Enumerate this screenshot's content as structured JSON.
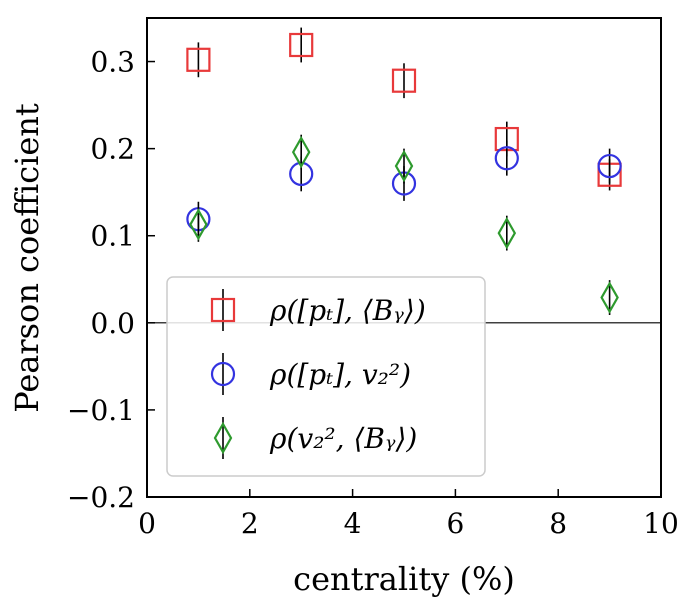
{
  "chart_data": {
    "type": "scatter",
    "title": "",
    "xlabel": "centrality (%)",
    "ylabel": "Pearson coefficient",
    "xlim": [
      0,
      10
    ],
    "ylim": [
      -0.2,
      0.35
    ],
    "xticks": [
      0,
      2,
      4,
      6,
      8,
      10
    ],
    "xtick_labels": [
      "0",
      "2",
      "4",
      "6",
      "8",
      "10"
    ],
    "yticks": [
      -0.2,
      -0.1,
      0.0,
      0.1,
      0.2,
      0.3
    ],
    "ytick_labels": [
      "−0.2",
      "−0.1",
      "0.0",
      "0.1",
      "0.2",
      "0.3"
    ],
    "reference_line_y": 0.0,
    "grid": false,
    "legend_position": "lower-left",
    "series": [
      {
        "name": "ρ([pₜ], ⟨Bᵧ⟩)",
        "marker": "square",
        "color": "#e8393a",
        "x": [
          1,
          3,
          5,
          7,
          9
        ],
        "y": [
          0.302,
          0.319,
          0.278,
          0.211,
          0.17
        ],
        "err": [
          0.02,
          0.02,
          0.02,
          0.02,
          0.018
        ]
      },
      {
        "name": "ρ([pₜ], v₂²)",
        "marker": "circle",
        "color": "#3333e0",
        "x": [
          1,
          3,
          5,
          7,
          9
        ],
        "y": [
          0.119,
          0.171,
          0.16,
          0.189,
          0.18
        ],
        "err": [
          0.02,
          0.02,
          0.02,
          0.02,
          0.02
        ]
      },
      {
        "name": "ρ(v₂², ⟨Bᵧ⟩)",
        "marker": "diamond",
        "color": "#2e9a2e",
        "x": [
          1,
          3,
          5,
          7,
          9
        ],
        "y": [
          0.113,
          0.196,
          0.18,
          0.103,
          0.029
        ],
        "err": [
          0.02,
          0.02,
          0.02,
          0.02,
          0.02
        ]
      }
    ]
  }
}
